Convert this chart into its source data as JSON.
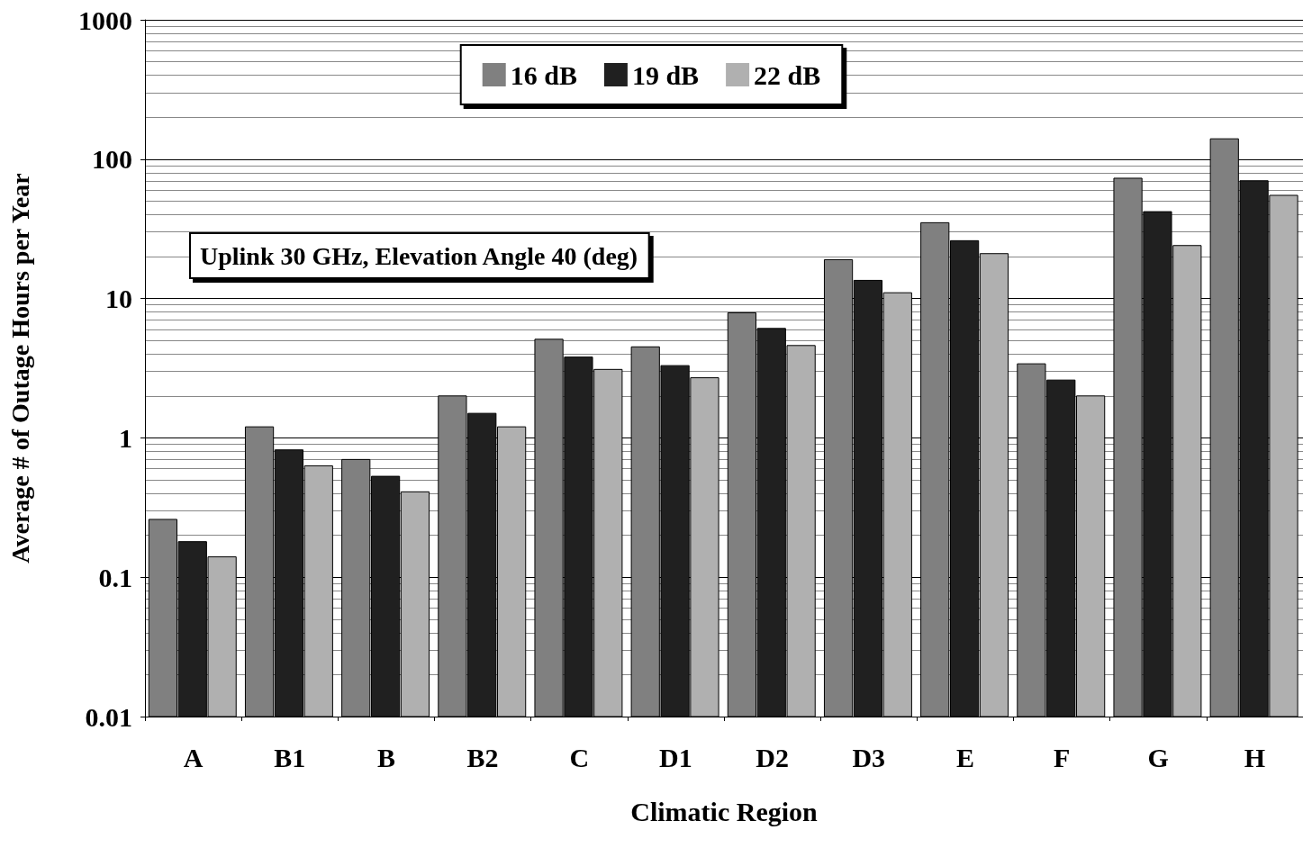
{
  "chart_data": {
    "type": "bar",
    "xlabel": "Climatic Region",
    "ylabel": "Average # of Outage Hours per Year",
    "categories": [
      "A",
      "B1",
      "B",
      "B2",
      "C",
      "D1",
      "D2",
      "D3",
      "E",
      "F",
      "G",
      "H"
    ],
    "series": [
      {
        "name": "16 dB",
        "color": "#808080",
        "values": [
          0.26,
          1.2,
          0.7,
          2.0,
          5.1,
          4.5,
          7.9,
          19,
          35,
          3.4,
          73,
          140
        ]
      },
      {
        "name": "19 dB",
        "color": "#202020",
        "values": [
          0.18,
          0.82,
          0.53,
          1.5,
          3.8,
          3.3,
          6.1,
          13.5,
          26,
          2.6,
          42,
          70
        ]
      },
      {
        "name": "22 dB",
        "color": "#b0b0b0",
        "values": [
          0.14,
          0.63,
          0.41,
          1.2,
          3.1,
          2.7,
          4.6,
          11,
          21,
          2.0,
          24,
          55
        ]
      }
    ],
    "log": "y",
    "ylim": [
      0.01,
      1000
    ],
    "yticks": [
      0.01,
      0.1,
      1,
      10,
      100,
      1000
    ],
    "grid": "y",
    "legend": "top",
    "annotations": [
      "Uplink 30 GHz, Elevation Angle 40 (deg)"
    ]
  }
}
